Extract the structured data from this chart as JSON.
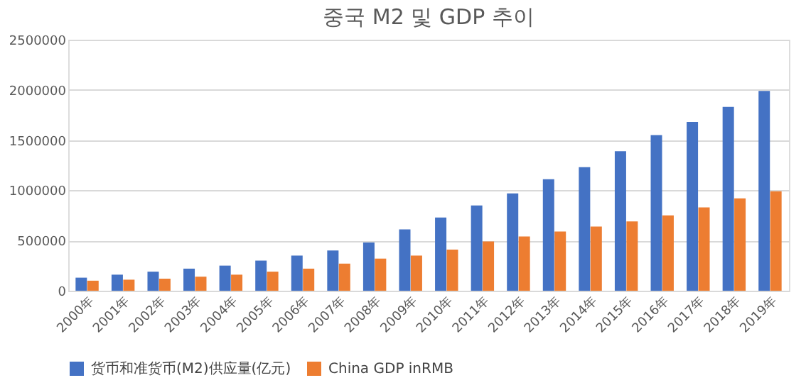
{
  "chart_data": {
    "type": "bar",
    "title": "중국 M2 및 GDP 추이",
    "categories": [
      "2000年",
      "2001年",
      "2002年",
      "2003年",
      "2004年",
      "2005年",
      "2006年",
      "2007年",
      "2008年",
      "2009年",
      "2010年",
      "2011年",
      "2012年",
      "2013年",
      "2014年",
      "2015年",
      "2016年",
      "2017年",
      "2018年",
      "2019年"
    ],
    "series": [
      {
        "name": "货币和准货币(M2)供应量(亿元)",
        "color": "#4472c4",
        "values": [
          130000,
          160000,
          190000,
          220000,
          250000,
          300000,
          350000,
          400000,
          480000,
          610000,
          730000,
          850000,
          970000,
          1110000,
          1230000,
          1390000,
          1550000,
          1680000,
          1830000,
          1990000
        ]
      },
      {
        "name": "China GDP inRMB",
        "color": "#ed7d31",
        "values": [
          100000,
          110000,
          120000,
          140000,
          160000,
          190000,
          220000,
          270000,
          320000,
          350000,
          410000,
          490000,
          540000,
          590000,
          640000,
          690000,
          750000,
          830000,
          920000,
          990000
        ]
      }
    ],
    "ylim": [
      0,
      2500000
    ],
    "yticks": [
      0,
      500000,
      1000000,
      1500000,
      2000000,
      2500000
    ],
    "grid": "y",
    "legend": "bottom"
  }
}
